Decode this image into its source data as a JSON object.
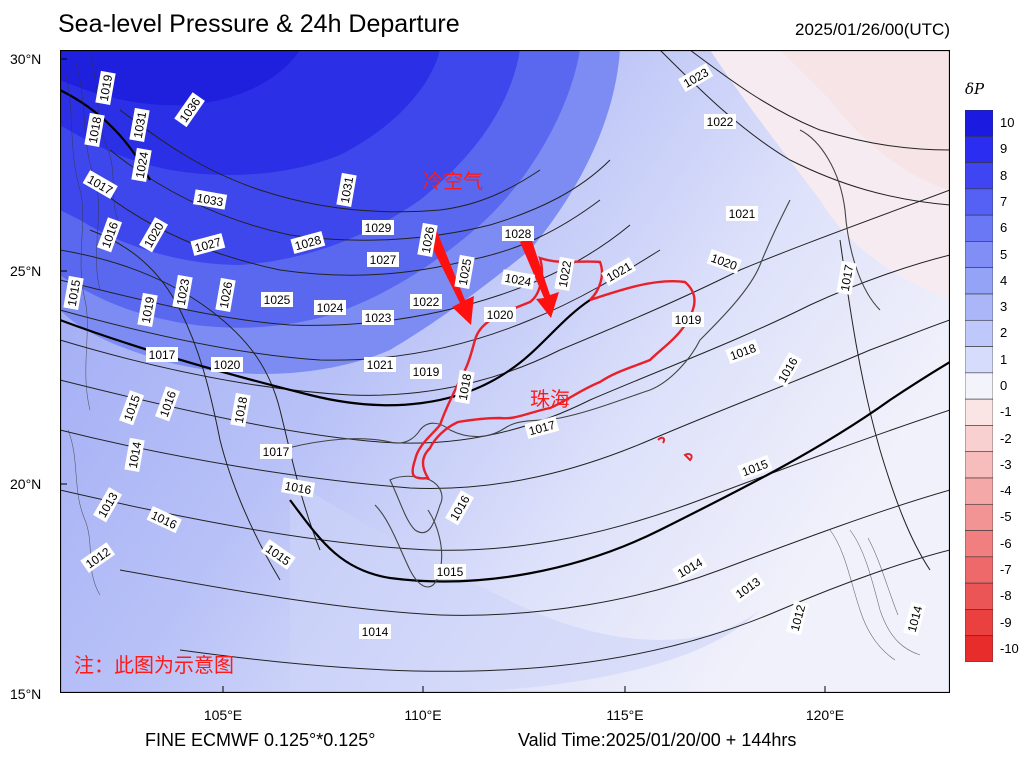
{
  "header": {
    "title": "Sea-level Pressure & 24h Departure",
    "date": "2025/01/26/00(UTC)"
  },
  "footer": {
    "model": "FINE ECMWF 0.125°*0.125°",
    "valid_time": "Valid Time:2025/01/20/00 + 144hrs"
  },
  "axes": {
    "lat_labels": [
      "30°N",
      "25°N",
      "20°N",
      "15°N"
    ],
    "lon_labels": [
      "105°E",
      "110°E",
      "115°E",
      "120°E"
    ]
  },
  "colorbar": {
    "title": "δP",
    "levels": [
      "10",
      "9",
      "8",
      "7",
      "6",
      "5",
      "4",
      "3",
      "2",
      "1",
      "0",
      "-1",
      "-2",
      "-3",
      "-4",
      "-5",
      "-6",
      "-7",
      "-8",
      "-9",
      "-10"
    ],
    "colors": [
      "#1a1ae0",
      "#2b2ef0",
      "#3f45f2",
      "#5560f4",
      "#6a78f5",
      "#808ef6",
      "#95a3f7",
      "#aab6f8",
      "#bfc8fa",
      "#d6dcfb",
      "#f3f3fb",
      "#fbe4e4",
      "#f9d0d0",
      "#f7bcbc",
      "#f5a8a8",
      "#f39494",
      "#f17f7f",
      "#ee6a6a",
      "#ec5555",
      "#ea4040",
      "#e82b2b"
    ]
  },
  "annotations": {
    "cold_air": "冷空气",
    "zhuhai": "珠海",
    "note": "注：此图为示意图"
  },
  "contour_labels": [
    {
      "text": "1019"
    },
    {
      "text": "1031"
    },
    {
      "text": "1036"
    },
    {
      "text": "1018"
    },
    {
      "text": "1024"
    },
    {
      "text": "1017"
    },
    {
      "text": "1033"
    },
    {
      "text": "1016"
    },
    {
      "text": "1020"
    },
    {
      "text": "1027"
    },
    {
      "text": "1028"
    },
    {
      "text": "1029"
    },
    {
      "text": "1031"
    },
    {
      "text": "1027"
    },
    {
      "text": "1026"
    },
    {
      "text": "1025"
    },
    {
      "text": "1028"
    },
    {
      "text": "1024"
    },
    {
      "text": "1022"
    },
    {
      "text": "1023"
    },
    {
      "text": "1026"
    },
    {
      "text": "1025"
    },
    {
      "text": "1024"
    },
    {
      "text": "1023"
    },
    {
      "text": "1022"
    },
    {
      "text": "1020"
    },
    {
      "text": "1015"
    },
    {
      "text": "1019"
    },
    {
      "text": "1017"
    },
    {
      "text": "1020"
    },
    {
      "text": "1021"
    },
    {
      "text": "1019"
    },
    {
      "text": "1018"
    },
    {
      "text": "1015"
    },
    {
      "text": "1016"
    },
    {
      "text": "1018"
    },
    {
      "text": "1014"
    },
    {
      "text": "1017"
    },
    {
      "text": "1016"
    },
    {
      "text": "1013"
    },
    {
      "text": "1016"
    },
    {
      "text": "1012"
    },
    {
      "text": "1015"
    },
    {
      "text": "1015"
    },
    {
      "text": "1014"
    },
    {
      "text": "1016"
    },
    {
      "text": "1017"
    },
    {
      "text": "1023"
    },
    {
      "text": "1022"
    },
    {
      "text": "1021"
    },
    {
      "text": "1020"
    },
    {
      "text": "1021"
    },
    {
      "text": "1019"
    },
    {
      "text": "1018"
    },
    {
      "text": "1016"
    },
    {
      "text": "1017"
    },
    {
      "text": "1015"
    },
    {
      "text": "1014"
    },
    {
      "text": "1013"
    },
    {
      "text": "1012"
    },
    {
      "text": "1014"
    }
  ]
}
